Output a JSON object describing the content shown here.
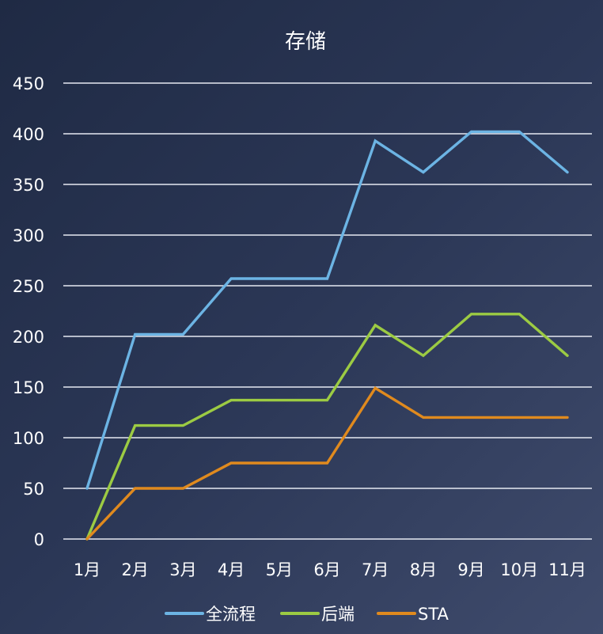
{
  "chart_data": {
    "type": "line",
    "title": "存储",
    "xlabel": "",
    "ylabel": "",
    "categories": [
      "1月",
      "2月",
      "3月",
      "4月",
      "5月",
      "6月",
      "7月",
      "8月",
      "9月",
      "10月",
      "11月"
    ],
    "ylim": [
      0,
      450
    ],
    "yticks": [
      0,
      50,
      100,
      150,
      200,
      250,
      300,
      350,
      400,
      450
    ],
    "grid": true,
    "legend_position": "bottom",
    "series": [
      {
        "name": "全流程",
        "color": "#6cb4e4",
        "values": [
          50,
          202,
          202,
          257,
          257,
          257,
          393,
          362,
          402,
          402,
          362
        ]
      },
      {
        "name": "后端",
        "color": "#9ccb43",
        "values": [
          0,
          112,
          112,
          137,
          137,
          137,
          211,
          181,
          222,
          222,
          181
        ]
      },
      {
        "name": "STA",
        "color": "#e08a1e",
        "values": [
          0,
          50,
          50,
          75,
          75,
          75,
          149,
          120,
          120,
          120,
          120
        ]
      }
    ]
  }
}
